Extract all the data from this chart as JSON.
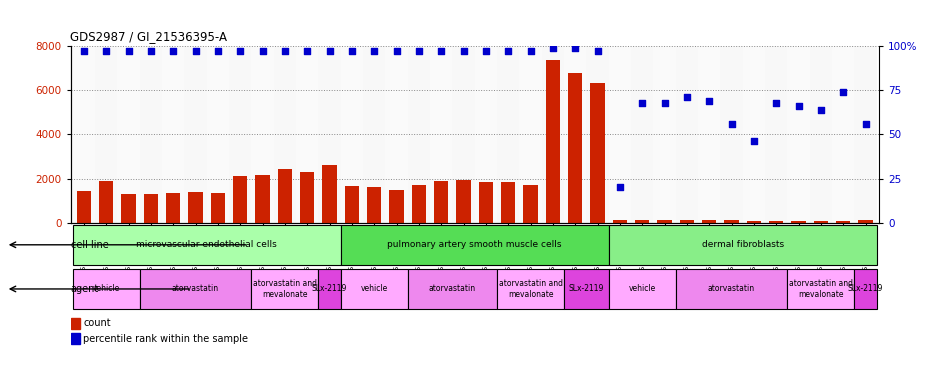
{
  "title": "GDS2987 / GI_21536395-A",
  "samples": [
    "GSM214810",
    "GSM215244",
    "GSM215253",
    "GSM215254",
    "GSM215282",
    "GSM215344",
    "GSM215283",
    "GSM215284",
    "GSM215293",
    "GSM215294",
    "GSM215295",
    "GSM215296",
    "GSM215297",
    "GSM215298",
    "GSM215310",
    "GSM215311",
    "GSM215312",
    "GSM215313",
    "GSM215324",
    "GSM215325",
    "GSM215326",
    "GSM215327",
    "GSM215328",
    "GSM215329",
    "GSM215330",
    "GSM215331",
    "GSM215332",
    "GSM215333",
    "GSM215334",
    "GSM215335",
    "GSM215336",
    "GSM215337",
    "GSM215338",
    "GSM215339",
    "GSM215340",
    "GSM215341"
  ],
  "counts": [
    1450,
    1900,
    1300,
    1300,
    1350,
    1400,
    1350,
    2100,
    2150,
    2450,
    2300,
    2600,
    1650,
    1600,
    1500,
    1700,
    1900,
    1950,
    1850,
    1850,
    1700,
    7350,
    6800,
    6350,
    130,
    120,
    110,
    110,
    120,
    110,
    100,
    100,
    100,
    100,
    100,
    120
  ],
  "percentiles": [
    97,
    97,
    97,
    97,
    97,
    97,
    97,
    97,
    97,
    97,
    97,
    97,
    97,
    97,
    97,
    97,
    97,
    97,
    97,
    97,
    97,
    99,
    99,
    97,
    20,
    68,
    68,
    71,
    69,
    56,
    46,
    68,
    66,
    64,
    74,
    56
  ],
  "bar_color": "#cc2200",
  "dot_color": "#0000cc",
  "ylim_left": [
    0,
    8000
  ],
  "ylim_right": [
    0,
    100
  ],
  "yticks_left": [
    0,
    2000,
    4000,
    6000,
    8000
  ],
  "yticks_right": [
    0,
    25,
    50,
    75,
    100
  ],
  "cell_line_groups": [
    {
      "label": "microvascular endothelial cells",
      "start": 0,
      "end": 11,
      "color": "#aaffaa"
    },
    {
      "label": "pulmonary artery smooth muscle cells",
      "start": 12,
      "end": 23,
      "color": "#55dd55"
    },
    {
      "label": "dermal fibroblasts",
      "start": 24,
      "end": 35,
      "color": "#88ee88"
    }
  ],
  "agent_groups": [
    {
      "label": "vehicle",
      "start": 0,
      "end": 2,
      "color": "#ffaaff"
    },
    {
      "label": "atorvastatin",
      "start": 3,
      "end": 7,
      "color": "#ee88ee"
    },
    {
      "label": "atorvastatin and\nmevalonate",
      "start": 8,
      "end": 10,
      "color": "#ffaaff"
    },
    {
      "label": "SLx-2119",
      "start": 11,
      "end": 11,
      "color": "#dd44dd"
    },
    {
      "label": "vehicle",
      "start": 12,
      "end": 14,
      "color": "#ffaaff"
    },
    {
      "label": "atorvastatin",
      "start": 15,
      "end": 18,
      "color": "#ee88ee"
    },
    {
      "label": "atorvastatin and\nmevalonate",
      "start": 19,
      "end": 21,
      "color": "#ffaaff"
    },
    {
      "label": "SLx-2119",
      "start": 22,
      "end": 23,
      "color": "#dd44dd"
    },
    {
      "label": "vehicle",
      "start": 24,
      "end": 26,
      "color": "#ffaaff"
    },
    {
      "label": "atorvastatin",
      "start": 27,
      "end": 31,
      "color": "#ee88ee"
    },
    {
      "label": "atorvastatin and\nmevalonate",
      "start": 32,
      "end": 34,
      "color": "#ffaaff"
    },
    {
      "label": "SLx-2119",
      "start": 35,
      "end": 35,
      "color": "#dd44dd"
    }
  ],
  "bg_color": "#ffffff",
  "grid_color": "#888888",
  "tick_label_color_left": "#cc2200",
  "tick_label_color_right": "#0000cc",
  "fig_width": 9.4,
  "fig_height": 3.84,
  "dpi": 100
}
